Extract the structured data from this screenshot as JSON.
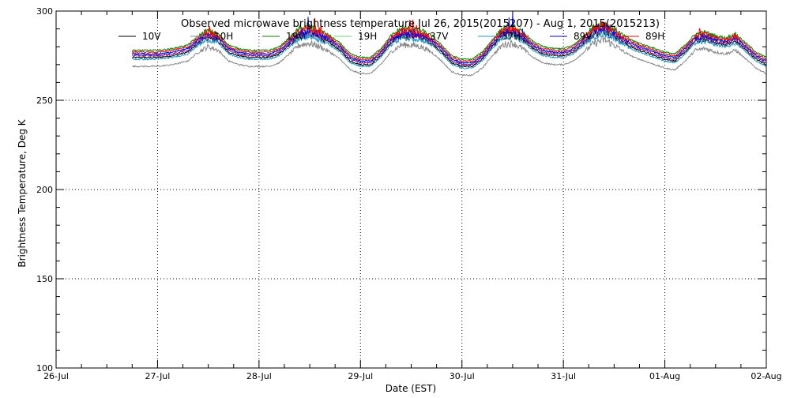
{
  "chart_data": {
    "type": "line",
    "title": "Observed microwave brightness temperature Jul 26, 2015(2015207) - Aug  1, 2015(2015213)",
    "xlabel": "Date (EST)",
    "ylabel": "Brightness Temperature, Deg K",
    "ylim": [
      100,
      300
    ],
    "yticks": [
      100,
      150,
      200,
      250,
      300
    ],
    "xlim": [
      0,
      7
    ],
    "xticks": [
      {
        "x": 0,
        "label": "26-Jul"
      },
      {
        "x": 1,
        "label": "27-Jul"
      },
      {
        "x": 2,
        "label": "28-Jul"
      },
      {
        "x": 3,
        "label": "29-Jul"
      },
      {
        "x": 4,
        "label": "30-Jul"
      },
      {
        "x": 5,
        "label": "31-Jul"
      },
      {
        "x": 6,
        "label": "01-Aug"
      },
      {
        "x": 7,
        "label": "02-Aug"
      }
    ],
    "grid": true,
    "legend_position": "top",
    "base_curve": {
      "x": [
        0.75,
        0.8,
        1.0,
        1.15,
        1.3,
        1.4,
        1.5,
        1.6,
        1.7,
        1.8,
        1.9,
        2.0,
        2.1,
        2.2,
        2.3,
        2.4,
        2.5,
        2.6,
        2.7,
        2.8,
        2.9,
        3.0,
        3.1,
        3.2,
        3.3,
        3.4,
        3.5,
        3.6,
        3.7,
        3.8,
        3.9,
        4.0,
        4.1,
        4.2,
        4.3,
        4.4,
        4.5,
        4.6,
        4.7,
        4.8,
        4.9,
        5.0,
        5.1,
        5.2,
        5.3,
        5.4,
        5.5,
        5.6,
        5.7,
        5.8,
        5.9,
        6.0,
        6.1,
        6.2,
        6.3,
        6.4,
        6.5,
        6.6,
        6.7,
        6.8,
        6.9,
        7.0
      ],
      "y": [
        276,
        276,
        276,
        277,
        279,
        284,
        287,
        285,
        279,
        277,
        276,
        276,
        276,
        278,
        283,
        288,
        289,
        287,
        284,
        280,
        274,
        272,
        272,
        277,
        284,
        288,
        288,
        287,
        284,
        279,
        273,
        271,
        271,
        275,
        282,
        288,
        289,
        286,
        281,
        278,
        277,
        277,
        279,
        284,
        289,
        291,
        288,
        284,
        281,
        279,
        277,
        275,
        274,
        279,
        285,
        286,
        284,
        283,
        285,
        280,
        275,
        272
      ]
    },
    "series": [
      {
        "name": "10V",
        "color": "#000000",
        "offset": -2
      },
      {
        "name": "10H",
        "color": "#888888",
        "offset": -7
      },
      {
        "name": "19V",
        "color": "#008800",
        "offset": 2
      },
      {
        "name": "19H",
        "color": "#66dd66",
        "offset": 0
      },
      {
        "name": "37V",
        "color": "#880088",
        "offset": -1
      },
      {
        "name": "37H",
        "color": "#2299cc",
        "offset": -3
      },
      {
        "name": "89V",
        "color": "#0000ff",
        "offset": 0
      },
      {
        "name": "89H",
        "color": "#ff0000",
        "offset": 1
      }
    ]
  }
}
